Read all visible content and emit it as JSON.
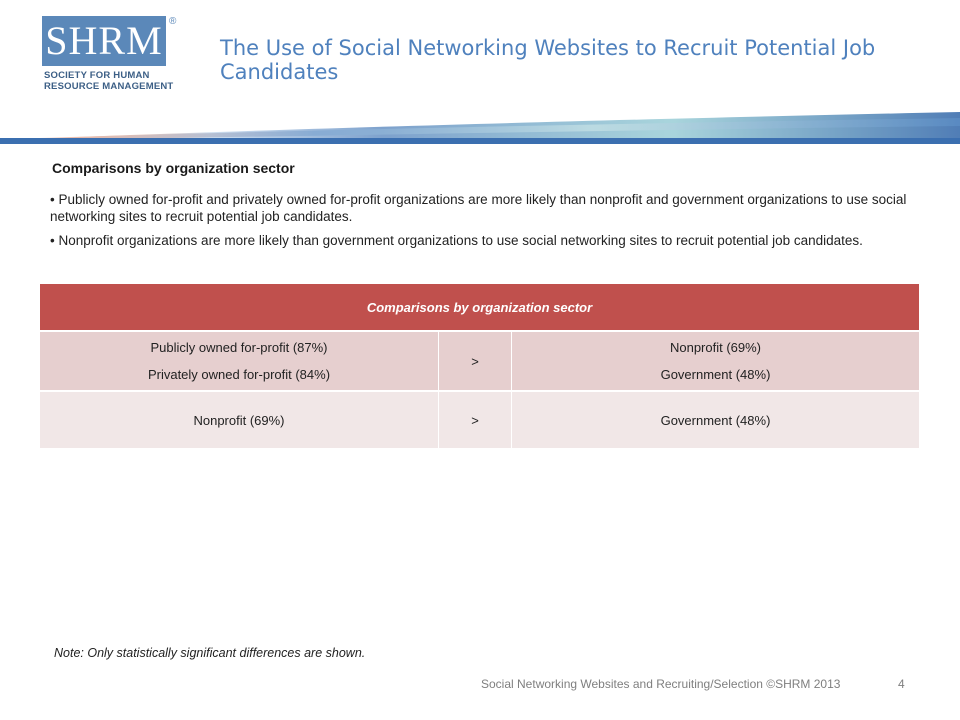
{
  "logo": {
    "mark": "SHRM",
    "registered": "®",
    "line1": "SOCIETY FOR HUMAN",
    "line2": "RESOURCE MANAGEMENT"
  },
  "slide": {
    "title": "The Use of Social Networking Websites to Recruit Potential Job Candidates"
  },
  "content": {
    "heading": "Comparisons by organization sector",
    "bullets": [
      "• Publicly owned for-profit and privately owned for-profit organizations are more likely than nonprofit and government organizations to use social networking sites to recruit potential job candidates.",
      "• Nonprofit organizations are more likely than government organizations to use social networking sites to recruit potential job candidates."
    ]
  },
  "table": {
    "header": "Comparisons by organization sector",
    "rows": [
      {
        "left": [
          "Publicly owned for-profit (87%)",
          "Privately owned for-profit (84%)"
        ],
        "op": ">",
        "right": [
          "Nonprofit (69%)",
          "Government (48%)"
        ]
      },
      {
        "left": [
          "Nonprofit (69%)"
        ],
        "op": ">",
        "right": [
          "Government (48%)"
        ]
      }
    ]
  },
  "note": "Note: Only statistically significant differences  are shown.",
  "footer": {
    "text": "Social Networking Websites and Recruiting/Selection ©SHRM 2013",
    "page": "4"
  },
  "colors": {
    "brand_blue": "#5b88b9",
    "title_blue": "#4f81bd",
    "table_header": "#c0504d",
    "row_dark": "#e6cfcf",
    "row_light": "#f1e7e7"
  }
}
